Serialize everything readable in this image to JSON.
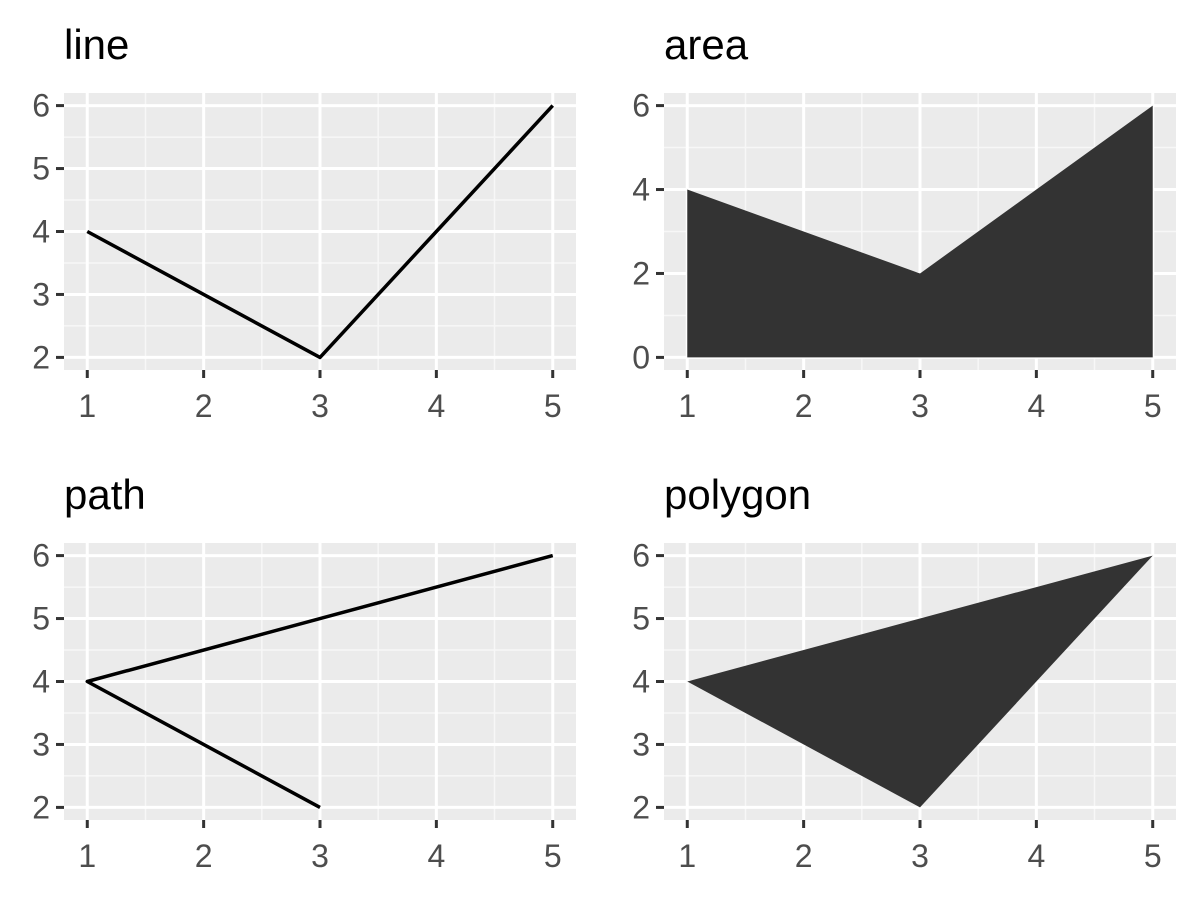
{
  "colors": {
    "panel_background": "#ebebeb",
    "grid_major": "#ffffff",
    "grid_minor": "#f7f7f7",
    "tick_mark": "#333333",
    "tick_text": "#4d4d4d",
    "line": "#000000",
    "fill": "#333333"
  },
  "chart_data": [
    {
      "type": "line",
      "title": "line",
      "xlabel": "",
      "ylabel": "",
      "x": [
        1,
        2,
        3,
        4,
        5
      ],
      "y": [
        4,
        3,
        2,
        4,
        6
      ],
      "xlim": [
        0.8,
        5.2
      ],
      "ylim": [
        1.8,
        6.2
      ],
      "xticks": [
        1,
        2,
        3,
        4,
        5
      ],
      "yticks": [
        2,
        3,
        4,
        5,
        6
      ],
      "grid": true,
      "legend": "none"
    },
    {
      "type": "area",
      "title": "area",
      "xlabel": "",
      "ylabel": "",
      "x": [
        1,
        2,
        3,
        4,
        5
      ],
      "y": [
        4,
        3,
        2,
        4,
        6
      ],
      "xlim": [
        0.8,
        5.2
      ],
      "ylim": [
        -0.3,
        6.3
      ],
      "xticks": [
        1,
        2,
        3,
        4,
        5
      ],
      "yticks": [
        0,
        2,
        4,
        6
      ],
      "grid": true,
      "legend": "none"
    },
    {
      "type": "path",
      "title": "path",
      "xlabel": "",
      "ylabel": "",
      "points": [
        {
          "x": 3,
          "y": 2
        },
        {
          "x": 1,
          "y": 4
        },
        {
          "x": 5,
          "y": 6
        }
      ],
      "xlim": [
        0.8,
        5.2
      ],
      "ylim": [
        1.8,
        6.2
      ],
      "xticks": [
        1,
        2,
        3,
        4,
        5
      ],
      "yticks": [
        2,
        3,
        4,
        5,
        6
      ],
      "grid": true,
      "legend": "none"
    },
    {
      "type": "polygon",
      "title": "polygon",
      "xlabel": "",
      "ylabel": "",
      "points": [
        {
          "x": 1,
          "y": 4
        },
        {
          "x": 3,
          "y": 2
        },
        {
          "x": 5,
          "y": 6
        }
      ],
      "xlim": [
        0.8,
        5.2
      ],
      "ylim": [
        1.8,
        6.2
      ],
      "xticks": [
        1,
        2,
        3,
        4,
        5
      ],
      "yticks": [
        2,
        3,
        4,
        5,
        6
      ],
      "grid": true,
      "legend": "none"
    }
  ]
}
